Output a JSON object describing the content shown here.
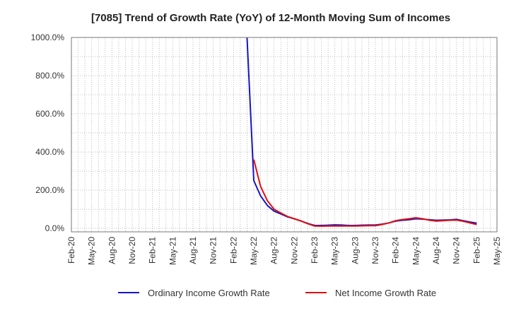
{
  "chart_data": {
    "type": "line",
    "title": "[7085]  Trend of Growth Rate (YoY) of 12-Month Moving Sum of Incomes",
    "xlabel": "",
    "ylabel": "",
    "x_ticks": [
      "Feb-20",
      "May-20",
      "Aug-20",
      "Nov-20",
      "Feb-21",
      "May-21",
      "Aug-21",
      "Nov-21",
      "Feb-22",
      "May-22",
      "Aug-22",
      "Nov-22",
      "Feb-23",
      "May-23",
      "Aug-23",
      "Nov-23",
      "Feb-24",
      "May-24",
      "Aug-24",
      "Nov-24",
      "Feb-25",
      "May-25"
    ],
    "y_ticks": [
      "0.0%",
      "200.0%",
      "400.0%",
      "600.0%",
      "800.0%",
      "1000.0%"
    ],
    "ylim": [
      0,
      1000
    ],
    "grid": true,
    "legend_position": "bottom",
    "series": [
      {
        "name": "Ordinary Income Growth Rate",
        "color": "#1515c8",
        "x": [
          "Apr-22",
          "May-22",
          "Jun-22",
          "Jul-22",
          "Aug-22",
          "Sep-22",
          "Oct-22",
          "Nov-22",
          "Dec-22",
          "Jan-23",
          "Feb-23",
          "Mar-23",
          "Apr-23",
          "May-23",
          "Jun-23",
          "Jul-23",
          "Aug-23",
          "Sep-23",
          "Oct-23",
          "Nov-23",
          "Dec-23",
          "Jan-24",
          "Feb-24",
          "Mar-24",
          "Apr-24",
          "May-24",
          "Jun-24",
          "Jul-24",
          "Aug-24",
          "Sep-24",
          "Oct-24",
          "Nov-24",
          "Dec-24",
          "Jan-25",
          "Feb-25"
        ],
        "values": [
          1000,
          250,
          170,
          120,
          90,
          75,
          60,
          50,
          38,
          25,
          15,
          15,
          16,
          18,
          17,
          15,
          15,
          16,
          17,
          17,
          22,
          28,
          38,
          42,
          45,
          50,
          48,
          45,
          42,
          43,
          44,
          47,
          40,
          33,
          27
        ]
      },
      {
        "name": "Net Income Growth Rate",
        "color": "#e01010",
        "x": [
          "May-22",
          "Jun-22",
          "Jul-22",
          "Aug-22",
          "Sep-22",
          "Oct-22",
          "Nov-22",
          "Dec-22",
          "Jan-23",
          "Feb-23",
          "Mar-23",
          "Apr-23",
          "May-23",
          "Jun-23",
          "Jul-23",
          "Aug-23",
          "Sep-23",
          "Oct-23",
          "Nov-23",
          "Dec-23",
          "Jan-24",
          "Feb-24",
          "Mar-24",
          "Apr-24",
          "May-24",
          "Jun-24",
          "Jul-24",
          "Aug-24",
          "Sep-24",
          "Oct-24",
          "Nov-24",
          "Dec-24",
          "Jan-25",
          "Feb-25"
        ],
        "values": [
          360,
          220,
          145,
          100,
          80,
          62,
          50,
          38,
          24,
          12,
          11,
          12,
          12,
          12,
          12,
          12,
          13,
          14,
          14,
          20,
          28,
          40,
          46,
          50,
          55,
          50,
          42,
          38,
          40,
          42,
          43,
          37,
          28,
          20
        ]
      }
    ]
  }
}
